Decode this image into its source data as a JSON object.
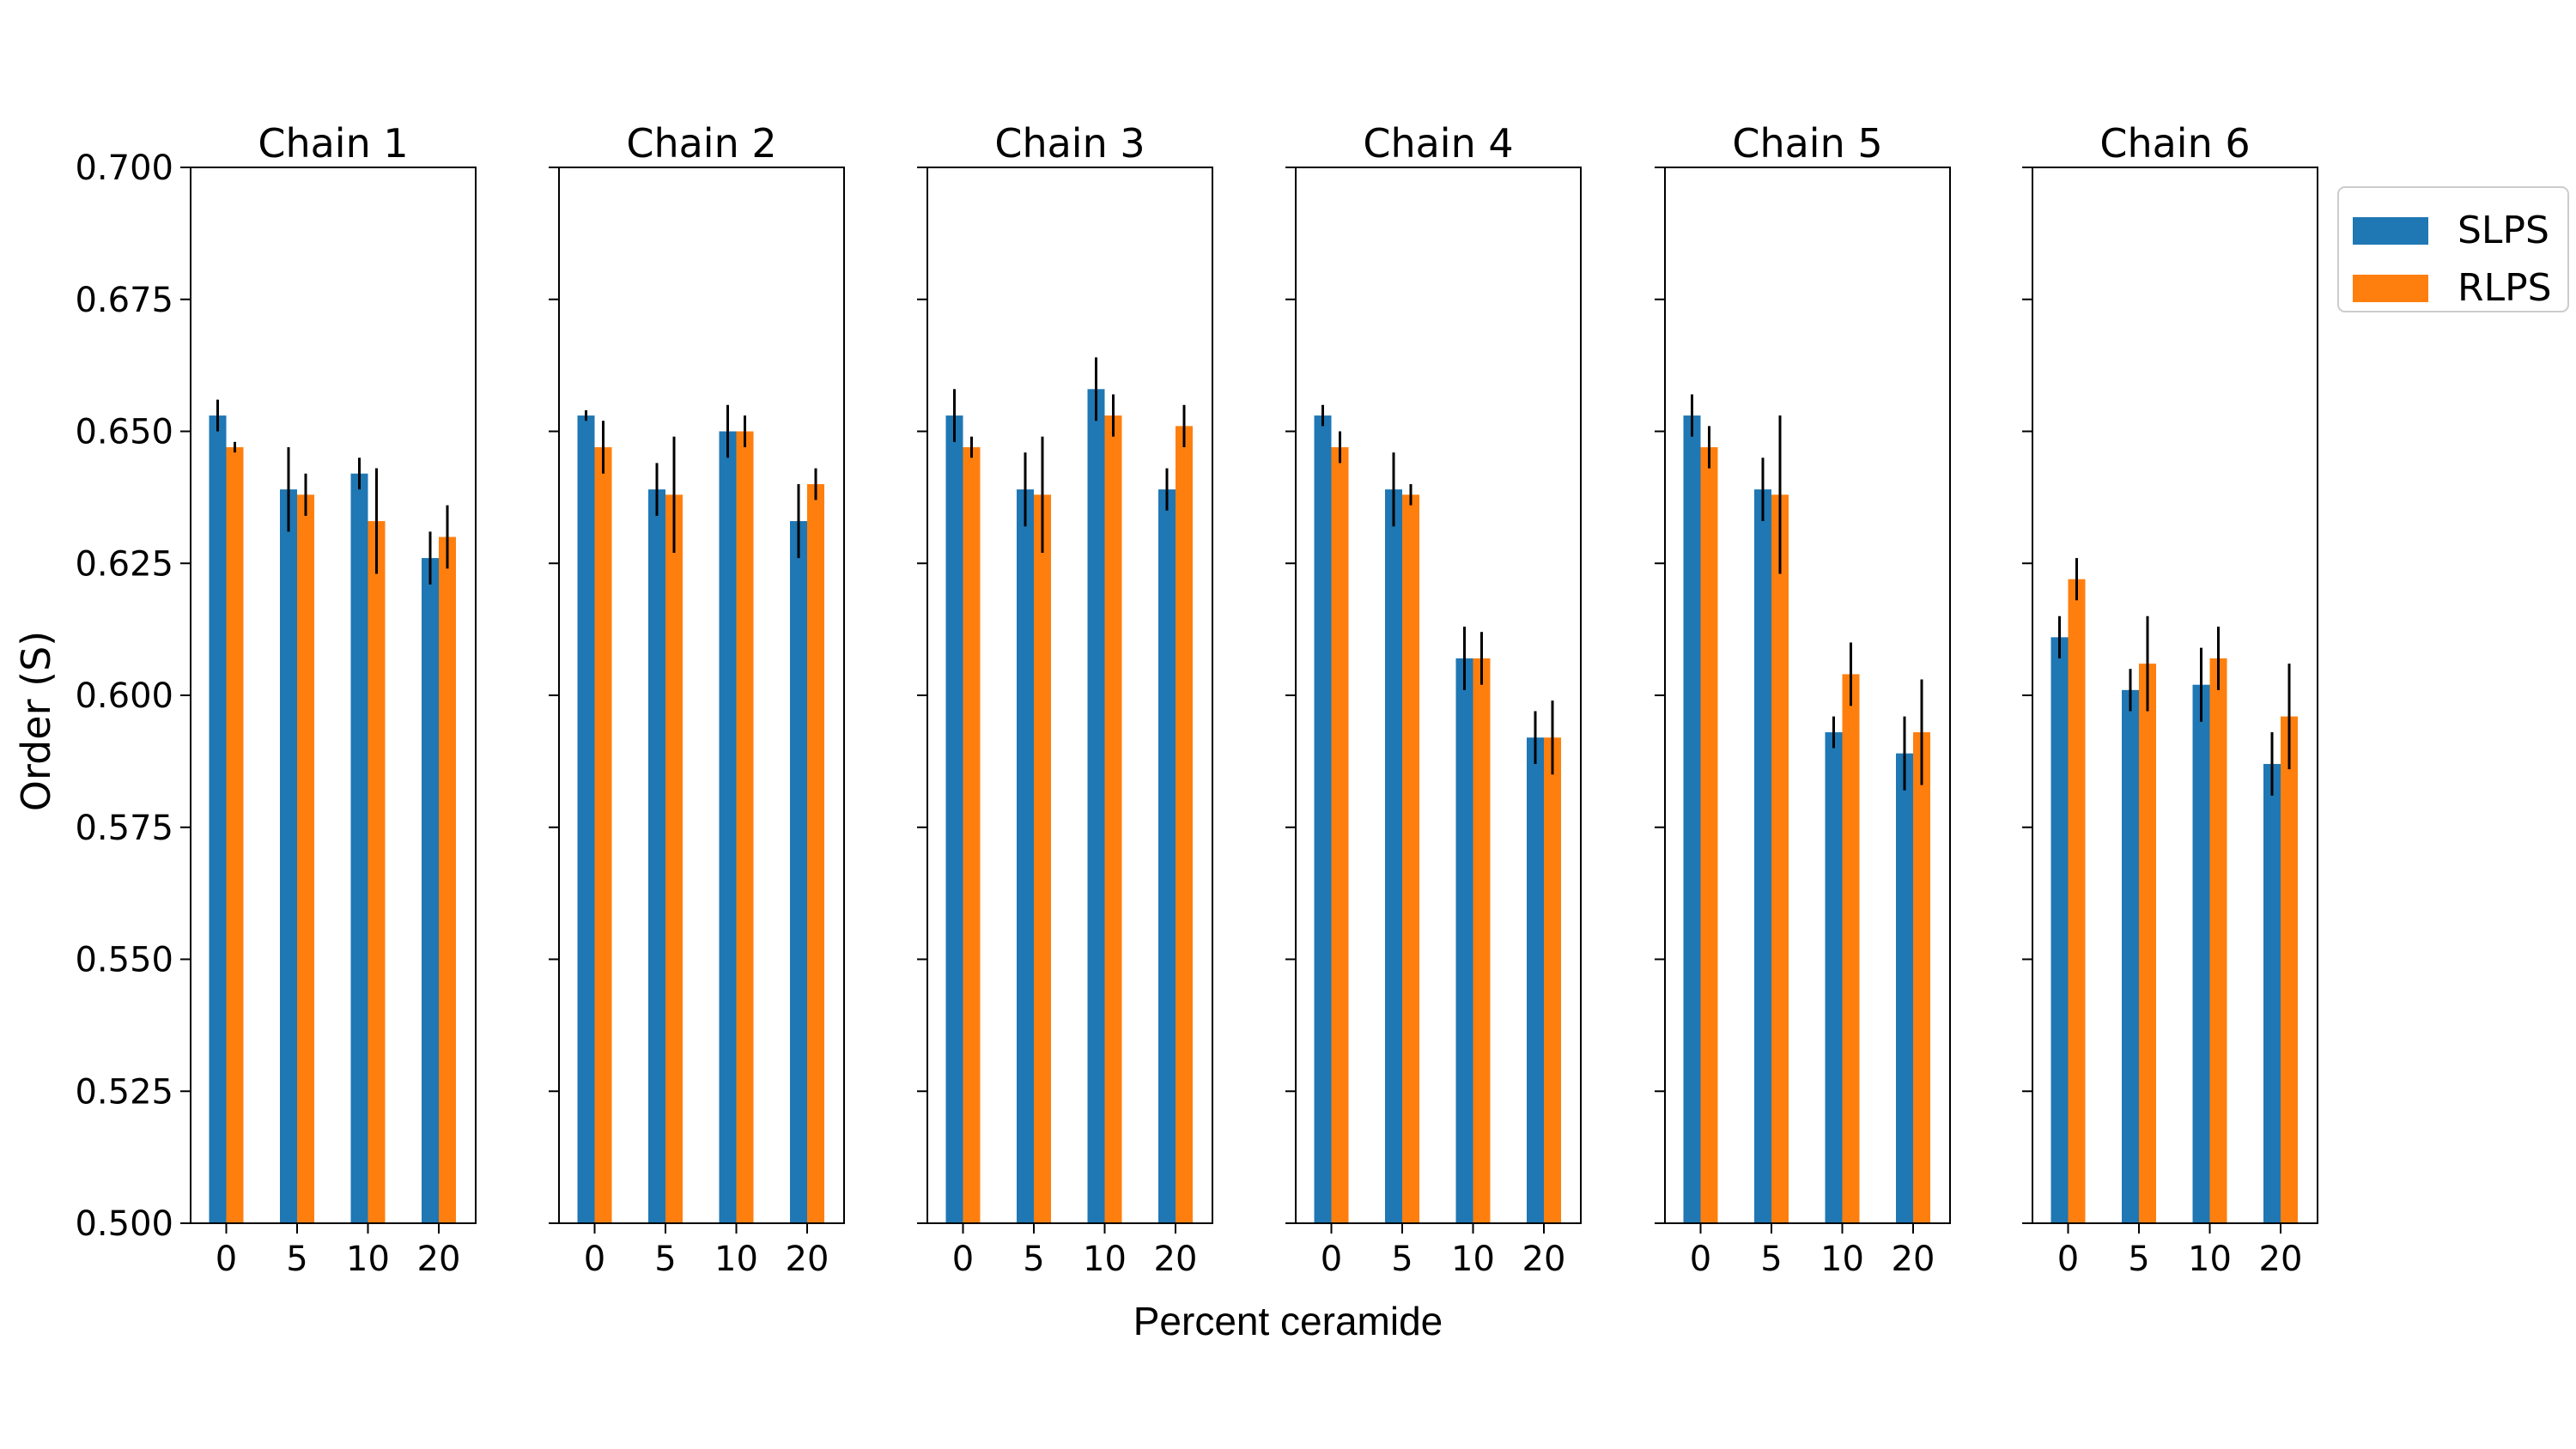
{
  "chart_data": {
    "type": "bar",
    "ylabel": "Order (S)",
    "xlabel": "Percent ceramide",
    "ylim": [
      0.5,
      0.7
    ],
    "yticks": [
      "0.500",
      "0.525",
      "0.550",
      "0.575",
      "0.600",
      "0.625",
      "0.650",
      "0.675",
      "0.700"
    ],
    "categories": [
      "0",
      "5",
      "10",
      "20"
    ],
    "grid": false,
    "legend_position": "top-right, outside",
    "series_styles": [
      {
        "name": "SLPS",
        "color": "#1f77b4"
      },
      {
        "name": "RLPS",
        "color": "#ff7f0e"
      }
    ],
    "panels": [
      {
        "title": "Chain 1",
        "series": [
          {
            "name": "SLPS",
            "values": [
              0.653,
              0.639,
              0.642,
              0.626
            ],
            "errors": [
              0.003,
              0.008,
              0.003,
              0.005
            ]
          },
          {
            "name": "RLPS",
            "values": [
              0.647,
              0.638,
              0.633,
              0.63
            ],
            "errors": [
              0.001,
              0.004,
              0.01,
              0.006
            ]
          }
        ]
      },
      {
        "title": "Chain 2",
        "series": [
          {
            "name": "SLPS",
            "values": [
              0.653,
              0.639,
              0.65,
              0.633
            ],
            "errors": [
              0.001,
              0.005,
              0.005,
              0.007
            ]
          },
          {
            "name": "RLPS",
            "values": [
              0.647,
              0.638,
              0.65,
              0.64
            ],
            "errors": [
              0.005,
              0.011,
              0.003,
              0.003
            ]
          }
        ]
      },
      {
        "title": "Chain 3",
        "series": [
          {
            "name": "SLPS",
            "values": [
              0.653,
              0.639,
              0.658,
              0.639
            ],
            "errors": [
              0.005,
              0.007,
              0.006,
              0.004
            ]
          },
          {
            "name": "RLPS",
            "values": [
              0.647,
              0.638,
              0.653,
              0.651
            ],
            "errors": [
              0.002,
              0.011,
              0.004,
              0.004
            ]
          }
        ]
      },
      {
        "title": "Chain 4",
        "series": [
          {
            "name": "SLPS",
            "values": [
              0.653,
              0.639,
              0.607,
              0.592
            ],
            "errors": [
              0.002,
              0.007,
              0.006,
              0.005
            ]
          },
          {
            "name": "RLPS",
            "values": [
              0.647,
              0.638,
              0.607,
              0.592
            ],
            "errors": [
              0.003,
              0.002,
              0.005,
              0.007
            ]
          }
        ]
      },
      {
        "title": "Chain 5",
        "series": [
          {
            "name": "SLPS",
            "values": [
              0.653,
              0.639,
              0.593,
              0.589
            ],
            "errors": [
              0.004,
              0.006,
              0.003,
              0.007
            ]
          },
          {
            "name": "RLPS",
            "values": [
              0.647,
              0.638,
              0.604,
              0.593
            ],
            "errors": [
              0.004,
              0.015,
              0.006,
              0.01
            ]
          }
        ]
      },
      {
        "title": "Chain 6",
        "series": [
          {
            "name": "SLPS",
            "values": [
              0.611,
              0.601,
              0.602,
              0.587
            ],
            "errors": [
              0.004,
              0.004,
              0.007,
              0.006
            ]
          },
          {
            "name": "RLPS",
            "values": [
              0.622,
              0.606,
              0.607,
              0.596
            ],
            "errors": [
              0.004,
              0.009,
              0.006,
              0.01
            ]
          }
        ]
      }
    ]
  }
}
